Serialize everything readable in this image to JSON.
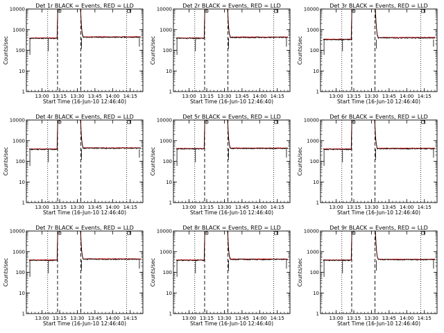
{
  "chart_data": {
    "type": "line",
    "layout": "3x3 grid",
    "panels": [
      {
        "title": "Det 1r BLACK = Events, RED = LLD",
        "baseline_before": 380,
        "baseline_after": 430,
        "rise_x": 13.22,
        "fall_x": 13.55
      },
      {
        "title": "Det 2r BLACK = Events, RED = LLD",
        "baseline_before": 380,
        "baseline_after": 420,
        "rise_x": 13.22,
        "fall_x": 13.55
      },
      {
        "title": "Det 3r BLACK = Events, RED = LLD",
        "baseline_before": 330,
        "baseline_after": 400,
        "rise_x": 13.22,
        "fall_x": 13.56
      },
      {
        "title": "Det 4r BLACK = Events, RED = LLD",
        "baseline_before": 380,
        "baseline_after": 430,
        "rise_x": 13.22,
        "fall_x": 13.55
      },
      {
        "title": "Det 5r BLACK = Events, RED = LLD",
        "baseline_before": 400,
        "baseline_after": 420,
        "rise_x": 13.22,
        "fall_x": 13.55
      },
      {
        "title": "Det 6r BLACK = Events, RED = LLD",
        "baseline_before": 380,
        "baseline_after": 410,
        "rise_x": 13.22,
        "fall_x": 13.55
      },
      {
        "title": "Det 7r BLACK = Events, RED = LLD",
        "baseline_before": 380,
        "baseline_after": 430,
        "rise_x": 13.22,
        "fall_x": 13.55
      },
      {
        "title": "Det 8r BLACK = Events, RED = LLD",
        "baseline_before": 380,
        "baseline_after": 420,
        "rise_x": 13.22,
        "fall_x": 13.55
      },
      {
        "title": "Det 9r BLACK = Events, RED = LLD",
        "baseline_before": 380,
        "baseline_after": 410,
        "rise_x": 13.22,
        "fall_x": 13.56
      }
    ],
    "xlabel": "Start Time (16-Jun-10 12:46:40)",
    "ylabel": "Counts/sec",
    "x_ticks": [
      13.0,
      13.25,
      13.5,
      13.75,
      14.0,
      14.25
    ],
    "x_tick_labels": [
      "13:00",
      "13:15",
      "13:30",
      "13:45",
      "14:00",
      "14:15"
    ],
    "xlim": [
      12.7778,
      14.43
    ],
    "ylim": [
      1,
      10000
    ],
    "yscale": "log",
    "y_ticks": [
      1,
      10,
      100,
      1000,
      10000
    ],
    "y_tick_labels": [
      "1",
      "10",
      "100",
      "1000",
      "10000"
    ],
    "dotted_vlines": [
      13.08,
      14.2
    ],
    "dashed_vlines": [
      13.22,
      13.55
    ],
    "series": [
      {
        "name": "Events",
        "color": "#000000"
      },
      {
        "name": "LLD",
        "color": "#ff0000"
      }
    ]
  }
}
